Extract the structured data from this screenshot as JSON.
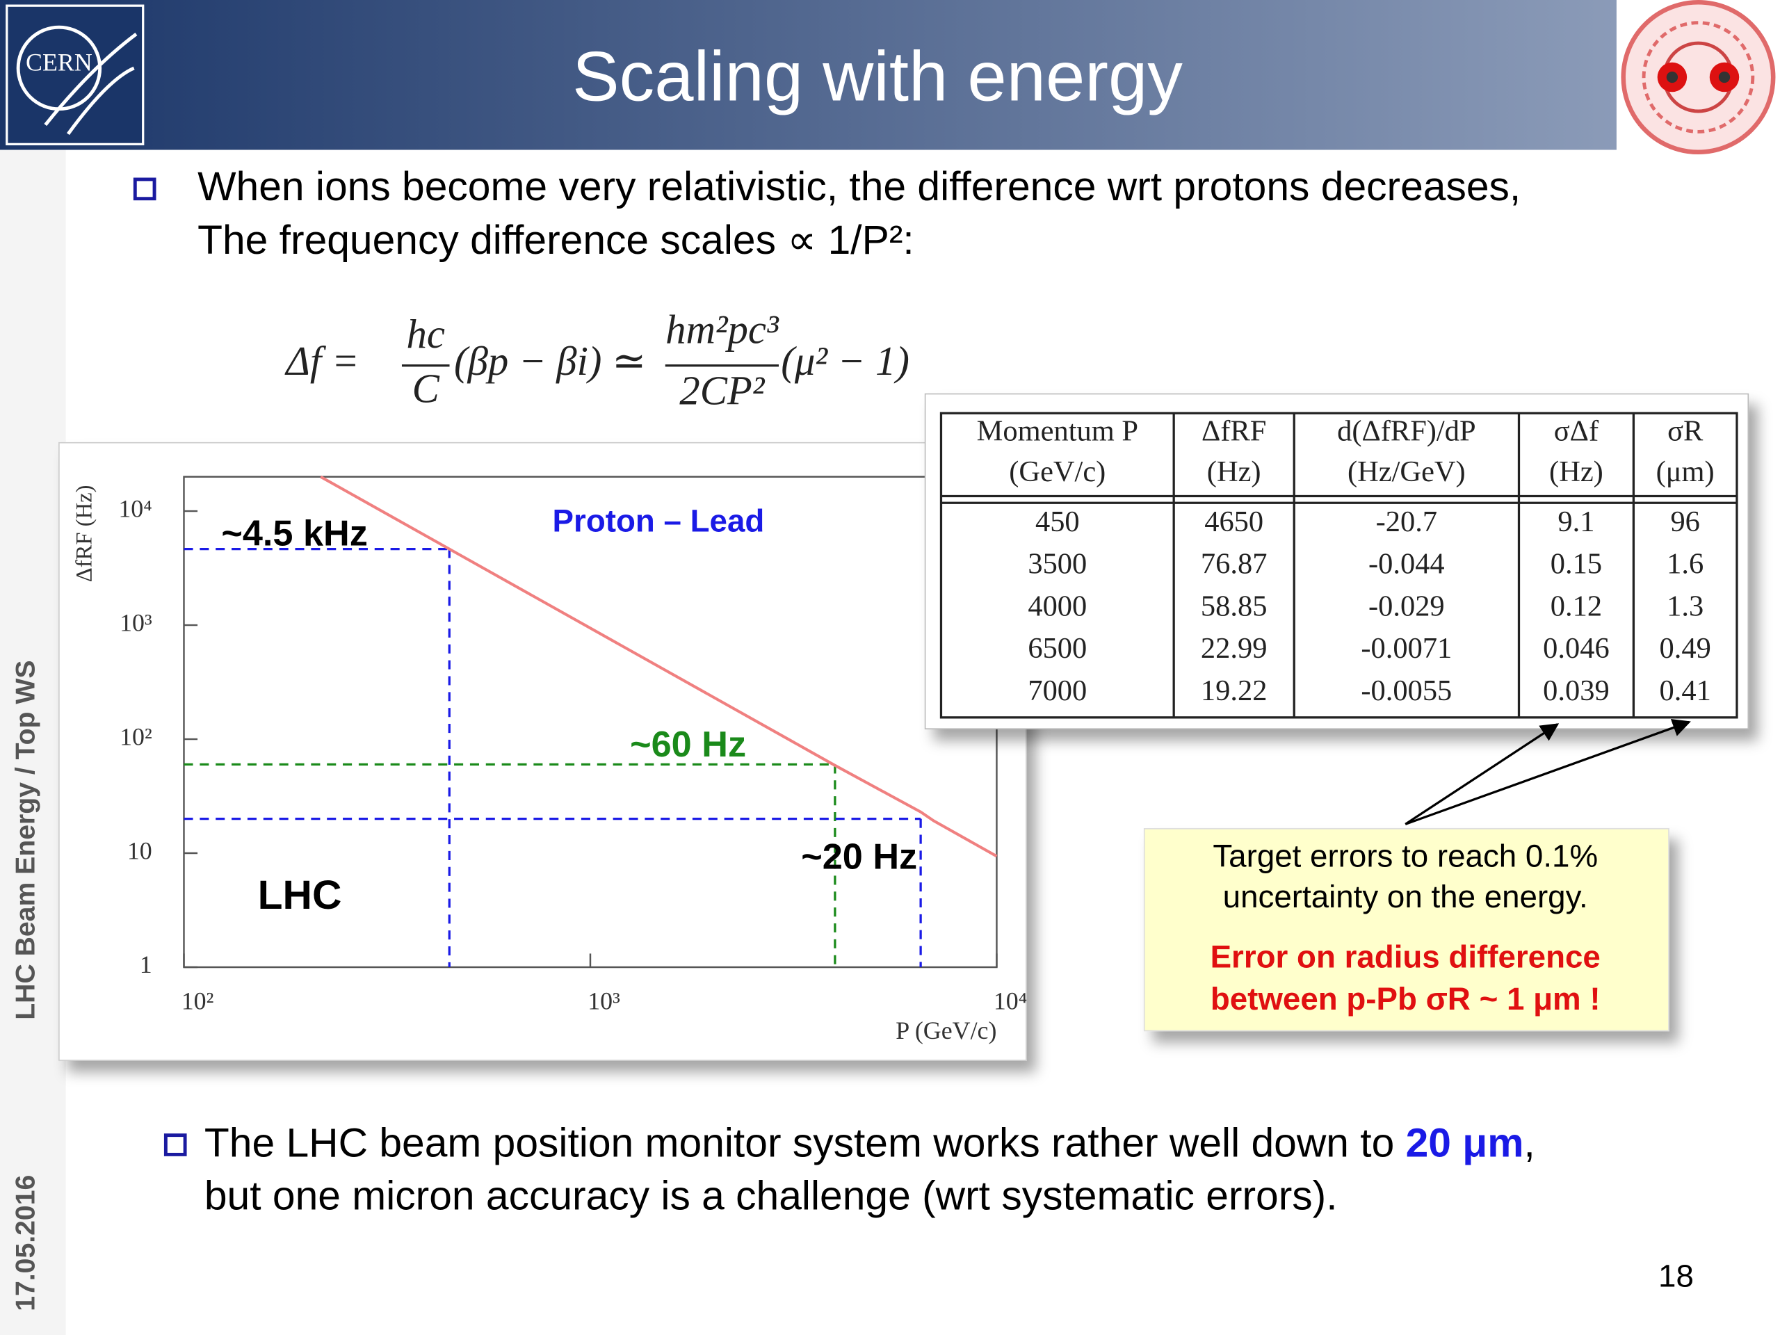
{
  "header": {
    "title": "Scaling with energy",
    "logo_text": "CERN"
  },
  "sidebar": {
    "talk": "LHC Beam Energy / Top WS",
    "date": "17.05.2016"
  },
  "page_number": "18",
  "bullets_top": [
    "When ions become very relativistic, the difference wrt protons decreases,",
    "The frequency difference scales ∝ 1/P²:"
  ],
  "formula": {
    "lhs": "Δf =",
    "frac1_num": "hc",
    "frac1_den": "C",
    "middle": "(βp − βi) ≃",
    "frac2_num": "hm²pc³",
    "frac2_den": "2CP²",
    "tail": "(μ² − 1)"
  },
  "chart_data": {
    "type": "line",
    "y_label": "ΔfRF (Hz)",
    "x_label": "P (GeV/c)",
    "x_log": true,
    "y_log": true,
    "xlim": [
      100,
      10000
    ],
    "ylim": [
      1,
      20000
    ],
    "xticks": [
      {
        "value": 100,
        "label": "10²"
      },
      {
        "value": 1000,
        "label": "10³"
      },
      {
        "value": 10000,
        "label": "10⁴"
      }
    ],
    "yticks": [
      1,
      10,
      {
        "value": 100,
        "label": "10²"
      },
      {
        "value": 1000,
        "label": "10³"
      },
      {
        "value": 10000,
        "label": "10⁴"
      }
    ],
    "series": [
      {
        "color": "#f08080",
        "x": [
          217,
          450,
          3500,
          4000,
          6500,
          7000,
          10000
        ],
        "values": [
          20000,
          4650,
          76.87,
          58.85,
          22.99,
          19.22,
          9.4
        ]
      }
    ],
    "reference_lines": [
      {
        "x": 450,
        "y": 4650,
        "color": "#1a1ae6",
        "label": "~4.5 kHz",
        "label_color": "#000000"
      },
      {
        "x": 4000,
        "y": 60,
        "color": "#1a8a1a",
        "label": "~60 Hz",
        "label_color": "#1a8a1a"
      },
      {
        "x": 6500,
        "y": 20,
        "color": "#1a1ae6",
        "label": "~20 Hz",
        "label_color": "#000000"
      }
    ],
    "annotations": [
      {
        "text": "Proton – Lead",
        "color": "#1a1ae6"
      },
      {
        "text": "LHC",
        "color": "#000000"
      }
    ]
  },
  "table": {
    "header": [
      [
        "Momentum P",
        "(GeV/c)"
      ],
      [
        "ΔfRF",
        "(Hz)"
      ],
      [
        "d(ΔfRF)/dP",
        "(Hz/GeV)"
      ],
      [
        "σΔf",
        "(Hz)"
      ],
      [
        "σR",
        "(μm)"
      ]
    ],
    "rows": [
      [
        "450",
        "4650",
        "-20.7",
        "9.1",
        "96"
      ],
      [
        "3500",
        "76.87",
        "-0.044",
        "0.15",
        "1.6"
      ],
      [
        "4000",
        "58.85",
        "-0.029",
        "0.12",
        "1.3"
      ],
      [
        "6500",
        "22.99",
        "-0.0071",
        "0.046",
        "0.49"
      ],
      [
        "7000",
        "19.22",
        "-0.0055",
        "0.039",
        "0.41"
      ]
    ]
  },
  "callout": {
    "lines": [
      "Target errors to reach 0.1%",
      "uncertainty on the energy."
    ],
    "emphasis": [
      "Error on radius difference",
      "between p-Pb σR ~ 1 μm !"
    ]
  },
  "bullet_bottom": {
    "line1": "The LHC beam position monitor system works rather well down to",
    "highlight": "20 μm",
    "comma": ",",
    "line2": "but one micron accuracy is a challenge (wrt systematic errors)."
  }
}
